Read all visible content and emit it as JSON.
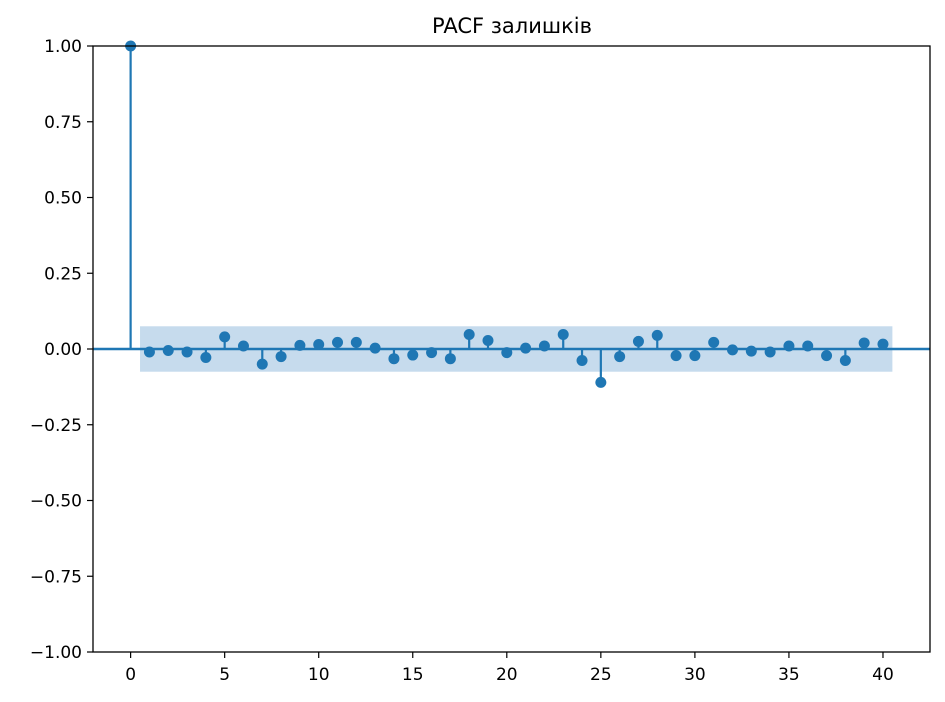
{
  "chart_data": {
    "type": "stem",
    "title": "PACF залишків",
    "xlabel": "",
    "ylabel": "",
    "xlim": [
      -2,
      42.5
    ],
    "ylim": [
      -1.0,
      1.0
    ],
    "x_ticks": [
      0,
      5,
      10,
      15,
      20,
      25,
      30,
      35,
      40
    ],
    "y_ticks": [
      1.0,
      0.75,
      0.5,
      0.25,
      0.0,
      -0.25,
      -0.5,
      -0.75,
      -1.0
    ],
    "x_tick_labels": [
      "0",
      "5",
      "10",
      "15",
      "20",
      "25",
      "30",
      "35",
      "40"
    ],
    "y_tick_labels": [
      "1.00",
      "0.75",
      "0.50",
      "0.25",
      "0.00",
      "−0.25",
      "−0.50",
      "−0.75",
      "−1.00"
    ],
    "grid": false,
    "series_color": "#1f77b4",
    "band_color": "#c6dbed",
    "confidence_band": {
      "x_start": 0.5,
      "x_end": 40.5,
      "lower": -0.075,
      "upper": 0.075
    },
    "lags": [
      0,
      1,
      2,
      3,
      4,
      5,
      6,
      7,
      8,
      9,
      10,
      11,
      12,
      13,
      14,
      15,
      16,
      17,
      18,
      19,
      20,
      21,
      22,
      23,
      24,
      25,
      26,
      27,
      28,
      29,
      30,
      31,
      32,
      33,
      34,
      35,
      36,
      37,
      38,
      39,
      40
    ],
    "values": [
      1.0,
      -0.01,
      -0.005,
      -0.01,
      -0.028,
      0.04,
      0.01,
      -0.05,
      -0.025,
      0.012,
      0.015,
      0.022,
      0.022,
      0.003,
      -0.032,
      -0.02,
      -0.012,
      -0.032,
      0.048,
      0.028,
      -0.012,
      0.003,
      0.01,
      0.048,
      -0.038,
      -0.11,
      -0.025,
      0.025,
      0.045,
      -0.022,
      -0.022,
      0.022,
      -0.003,
      -0.007,
      -0.01,
      0.01,
      0.01,
      -0.022,
      -0.038,
      0.02,
      0.016
    ]
  }
}
